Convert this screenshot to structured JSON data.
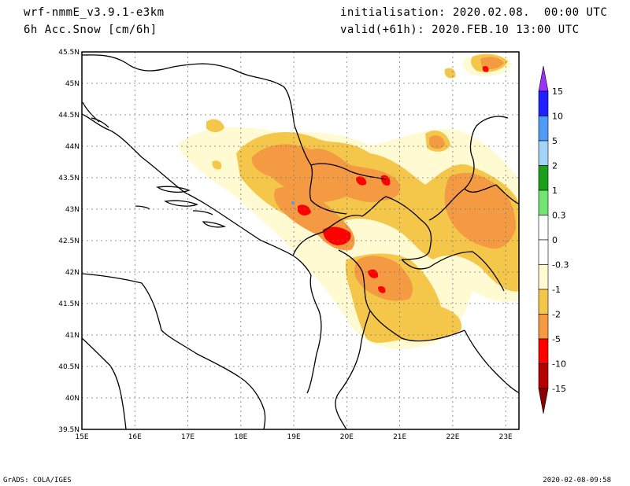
{
  "header": {
    "model": "wrf-nmmE_v3.9.1-e3km",
    "field": "6h Acc.Snow [cm/6h]",
    "initialisation": "initialisation: 2020.02.08.  00:00 UTC",
    "valid": "valid(+61h): 2020.FEB.10 13:00 UTC"
  },
  "map": {
    "lon_ticks": [
      "15E",
      "16E",
      "17E",
      "18E",
      "19E",
      "20E",
      "21E",
      "22E",
      "23E"
    ],
    "lat_ticks": [
      "45.5N",
      "45N",
      "44.5N",
      "44N",
      "43.5N",
      "43N",
      "42.5N",
      "42N",
      "41.5N",
      "41N",
      "40.5N",
      "40N",
      "39.5N"
    ],
    "lon_range": [
      15,
      23.25
    ],
    "lat_range": [
      39.5,
      45.5
    ]
  },
  "legend": {
    "labels": [
      "15",
      "10",
      "5",
      "2",
      "1",
      "0.3",
      "0",
      "-0.3",
      "-1",
      "-2",
      "-5",
      "-10",
      "-15"
    ],
    "colors": [
      "#1f1fff",
      "#4f9bf6",
      "#a3d4f7",
      "#1aa01a",
      "#72e472",
      "#ffffff",
      "#ffffff",
      "#fffad2",
      "#f4c74a",
      "#f39a42",
      "#ff0000",
      "#b60000"
    ],
    "top_arrow_color": "#9b30ff",
    "bottom_arrow_color": "#8b0000"
  },
  "footer": {
    "credit": "GrADS: COLA/IGES",
    "timestamp": "2020-02-08-09:58"
  }
}
